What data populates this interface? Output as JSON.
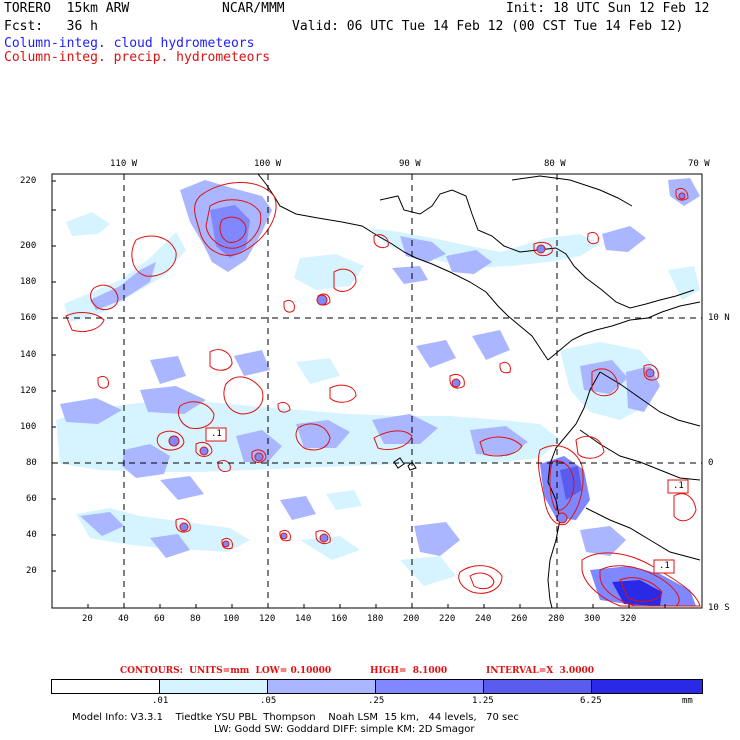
{
  "header": {
    "model": "TORERO  15km ARW",
    "org": "NCAR/MMM",
    "init": "Init: 18 UTC Sun 12 Feb 12",
    "fcst": "Fcst:   36 h",
    "valid": "Valid: 06 UTC Tue 14 Feb 12 (00 CST Tue 14 Feb 12)",
    "field_cloud": "Column-integ. cloud hydrometeors",
    "field_precip": "Column-integ. precip. hydrometeors"
  },
  "axes": {
    "x_ticks": [
      "20",
      "40",
      "60",
      "80",
      "100",
      "120",
      "140",
      "160",
      "180",
      "200",
      "220",
      "240",
      "260",
      "280",
      "300",
      "320"
    ],
    "y_ticks": [
      "20",
      "40",
      "60",
      "80",
      "100",
      "120",
      "140",
      "160",
      "180",
      "200",
      "220"
    ],
    "lon_labels": [
      "110 W",
      "100 W",
      "90 W",
      "80 W",
      "70 W"
    ],
    "lat_labels": [
      "10 N",
      "0",
      "10 S"
    ]
  },
  "contour_labels": [
    ".1",
    ".1",
    ".1"
  ],
  "contour_info": {
    "contours": "CONTOURS:  UNITS=mm  LOW= 0.10000",
    "high": "HIGH=  8.1000",
    "interval": "INTERVAL=X  3.0000"
  },
  "legend": {
    "ticks": [
      ".01",
      ".05",
      ".25",
      "1.25",
      "6.25"
    ],
    "unit": "mm",
    "colors": [
      "#ffffff",
      "#d6f4ff",
      "#aab6ff",
      "#7f88ff",
      "#5a5cf0",
      "#2a2ae6"
    ]
  },
  "footer": {
    "line1": "Model Info: V3.3.1    Tiedtke YSU PBL  Thompson    Noah LSM  15 km,   44 levels,   70 sec",
    "line2": "LW: Godd SW: Goddard DIFF: simple KM: 2D Smagor"
  },
  "colors": {
    "cloud_label": "#2020ff",
    "precip_label": "#e01010",
    "precip_contour": "#e01010"
  }
}
